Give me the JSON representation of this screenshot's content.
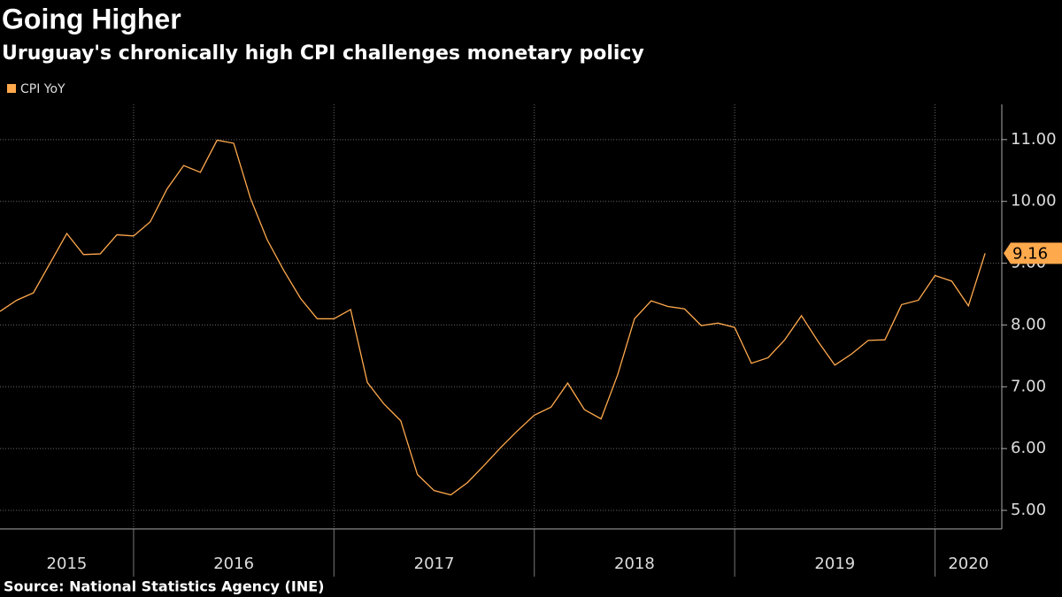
{
  "chart_data": {
    "type": "line",
    "title": "Going Higher",
    "subtitle": "Uruguay's chronically high CPI challenges monetary policy",
    "source": "Source: National Statistics Agency (INE)",
    "x": [
      "2015-04",
      "2015-05",
      "2015-06",
      "2015-07",
      "2015-08",
      "2015-09",
      "2015-10",
      "2015-11",
      "2015-12",
      "2016-01",
      "2016-02",
      "2016-03",
      "2016-04",
      "2016-05",
      "2016-06",
      "2016-07",
      "2016-08",
      "2016-09",
      "2016-10",
      "2016-11",
      "2016-12",
      "2017-01",
      "2017-02",
      "2017-03",
      "2017-04",
      "2017-05",
      "2017-06",
      "2017-07",
      "2017-08",
      "2017-09",
      "2017-10",
      "2017-11",
      "2017-12",
      "2018-01",
      "2018-02",
      "2018-03",
      "2018-04",
      "2018-05",
      "2018-06",
      "2018-07",
      "2018-08",
      "2018-09",
      "2018-10",
      "2018-11",
      "2018-12",
      "2019-01",
      "2019-02",
      "2019-03",
      "2019-04",
      "2019-05",
      "2019-06",
      "2019-07",
      "2019-08",
      "2019-09",
      "2019-10",
      "2019-11",
      "2019-12",
      "2020-01",
      "2020-02",
      "2020-03"
    ],
    "series": [
      {
        "name": "CPI YoY",
        "color": "#ffa94d",
        "values": [
          8.22,
          8.4,
          8.52,
          9.0,
          9.48,
          9.14,
          9.15,
          9.46,
          9.44,
          9.67,
          10.2,
          10.58,
          10.47,
          10.99,
          10.94,
          10.05,
          9.38,
          8.88,
          8.43,
          8.1,
          8.1,
          8.25,
          7.07,
          6.72,
          6.45,
          5.58,
          5.32,
          5.25,
          5.45,
          5.73,
          6.02,
          6.29,
          6.54,
          6.67,
          7.06,
          6.63,
          6.48,
          7.2,
          8.1,
          8.39,
          8.3,
          8.26,
          7.99,
          8.03,
          7.96,
          7.38,
          7.47,
          7.76,
          8.15,
          7.73,
          7.35,
          7.53,
          7.75,
          7.76,
          8.33,
          8.4,
          8.8,
          8.71,
          8.31,
          9.16
        ]
      }
    ],
    "xlim": [
      "2015-04",
      "2020-04"
    ],
    "xticks": [
      2015,
      2016,
      2017,
      2018,
      2019,
      2020
    ],
    "ylim": [
      4.7,
      11.57
    ],
    "yticks": [
      {
        "value": 5,
        "label": "5.00"
      },
      {
        "value": 6,
        "label": "6.00"
      },
      {
        "value": 7,
        "label": "7.00"
      },
      {
        "value": 8,
        "label": "8.00"
      },
      {
        "value": 9,
        "label": "9.00"
      },
      {
        "value": 10,
        "label": "10.00"
      },
      {
        "value": 11,
        "label": "11.00"
      }
    ],
    "grid": true,
    "legend": "top-left",
    "last_value_label": true
  }
}
